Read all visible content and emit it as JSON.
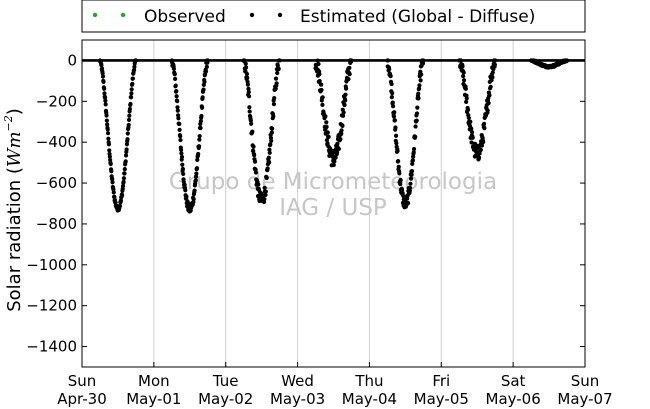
{
  "chart_data": {
    "type": "scatter",
    "ylabel": "Solar radiation (W m^-2)",
    "ylabel_parts": {
      "main": "Solar radiation (",
      "var": "Wm",
      "exp": "−2",
      "close": ")"
    },
    "xlabel": "",
    "title": "",
    "x_range": [
      "2014-04-30 00:00",
      "2014-05-07 00:00"
    ],
    "ylim": [
      -1500,
      100
    ],
    "yticks": [
      0,
      -200,
      -400,
      -600,
      -800,
      -1000,
      -1200,
      -1400
    ],
    "ytick_labels": [
      "0",
      "−200",
      "−400",
      "−600",
      "−800",
      "−1000",
      "−1200",
      "−1400"
    ],
    "xticks": [
      {
        "day": "Sun",
        "date": "Apr-30"
      },
      {
        "day": "Mon",
        "date": "May-01"
      },
      {
        "day": "Tue",
        "date": "May-02"
      },
      {
        "day": "Wed",
        "date": "May-03"
      },
      {
        "day": "Thu",
        "date": "May-04"
      },
      {
        "day": "Fri",
        "date": "May-05"
      },
      {
        "day": "Sat",
        "date": "May-06"
      },
      {
        "day": "Sun",
        "date": "May-07"
      }
    ],
    "grid": "vertical",
    "legend_position": "top",
    "watermark": [
      "Grupo de Micrometeorologia",
      "IAG / USP"
    ],
    "colors": {
      "observed": "#2ca02c",
      "estimated": "#000000",
      "grid": "#cfcfcf",
      "watermark": "#c6c6c6"
    },
    "series": [
      {
        "name": "Observed",
        "marker": "dot",
        "color": "#2ca02c",
        "points": []
      },
      {
        "name": "Estimated (Global - Diffuse)",
        "marker": "dot",
        "color": "#000000",
        "days": [
          {
            "day_start": "2014-04-30",
            "peak_hour": 12.0,
            "peak_value": -725,
            "noise": 20
          },
          {
            "day_start": "2014-05-01",
            "peak_hour": 12.0,
            "peak_value": -730,
            "noise": 40
          },
          {
            "day_start": "2014-05-02",
            "peak_hour": 12.0,
            "peak_value": -685,
            "noise": 70
          },
          {
            "day_start": "2014-05-03",
            "peak_hour": 12.0,
            "peak_value": -480,
            "noise": 90
          },
          {
            "day_start": "2014-05-04",
            "peak_hour": 12.0,
            "peak_value": -700,
            "noise": 60
          },
          {
            "day_start": "2014-05-05",
            "peak_hour": 12.0,
            "peak_value": -455,
            "noise": 80
          },
          {
            "day_start": "2014-05-06",
            "peak_hour": 12.0,
            "peak_value": -30,
            "noise": 10
          }
        ]
      }
    ]
  }
}
